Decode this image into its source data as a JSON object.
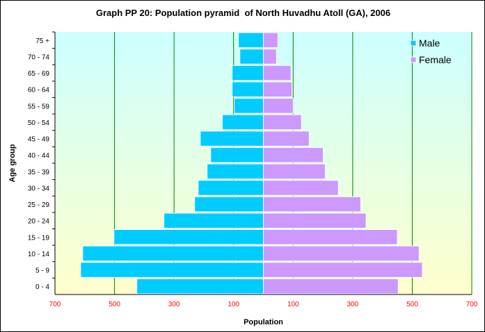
{
  "chart_data": {
    "type": "bar",
    "orientation": "horizontal-pyramid",
    "title": "Graph PP 20: Population pyramid  of North Huvadhu Atoll (GA), 2006",
    "xlabel": "Population",
    "ylabel": "Age group",
    "xlim": [
      -700,
      700
    ],
    "x_ticks": [
      "700",
      "500",
      "300",
      "100",
      "100",
      "300",
      "500",
      "700"
    ],
    "grid": "vertical",
    "legend_position": "top-right",
    "categories": [
      "0 - 4",
      "5 - 9",
      "10 - 14",
      "15 - 19",
      "20 - 24",
      "25 - 29",
      "30 - 34",
      "35 - 39",
      "40 - 44",
      "45 - 49",
      "50 - 54",
      "55 - 59",
      "60 - 64",
      "65 - 69",
      "70 - 74",
      "75 +"
    ],
    "series": [
      {
        "name": "Male",
        "color": "#00CCFF",
        "values": [
          425,
          614,
          607,
          502,
          334,
          231,
          219,
          189,
          177,
          212,
          138,
          98,
          105,
          105,
          79,
          84
        ]
      },
      {
        "name": "Female",
        "color": "#CC99FF",
        "values": [
          453,
          534,
          523,
          450,
          345,
          327,
          252,
          208,
          201,
          154,
          128,
          100,
          96,
          93,
          44,
          49
        ]
      }
    ]
  }
}
